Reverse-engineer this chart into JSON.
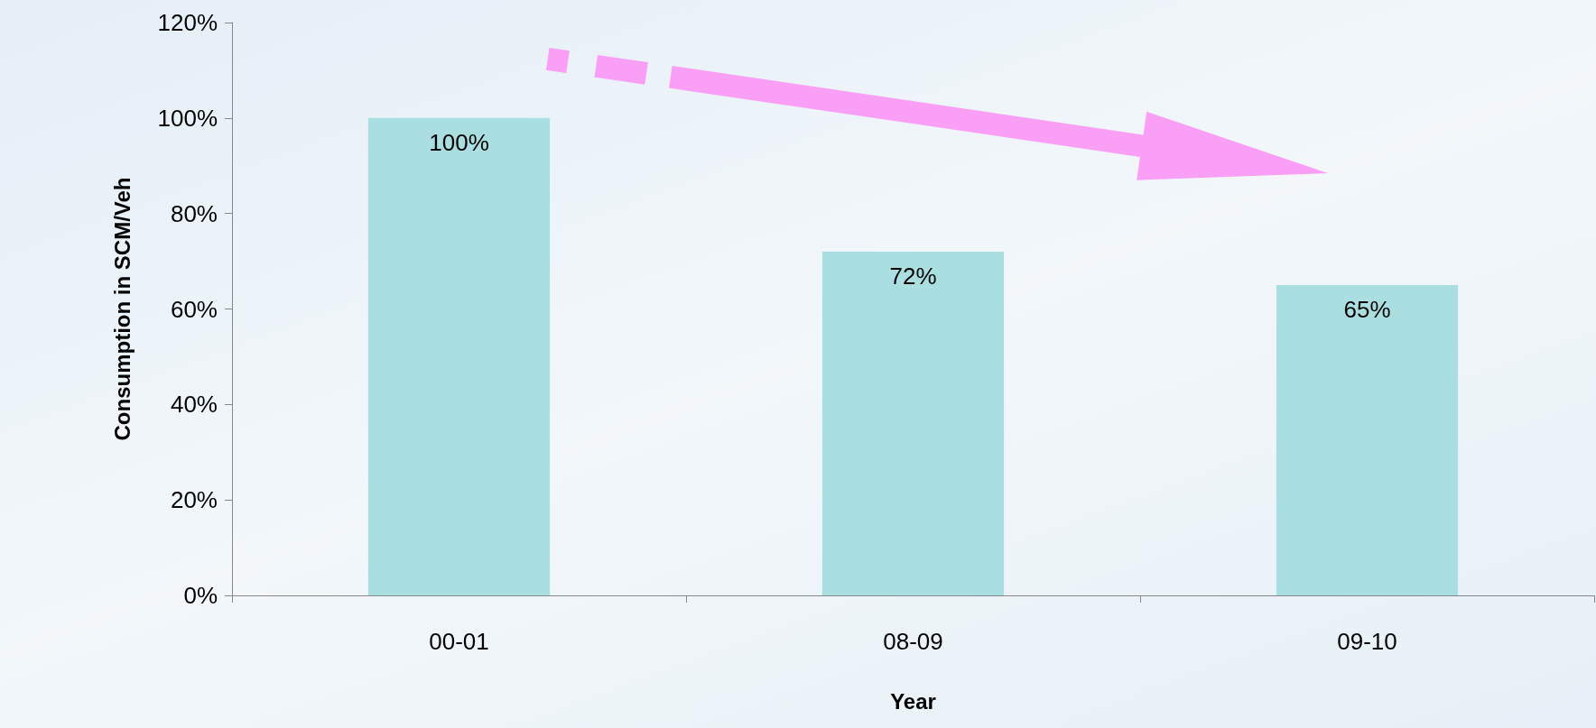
{
  "chart_data": {
    "type": "bar",
    "xlabel": "Year",
    "ylabel": "Consumption in SCM/Veh",
    "categories": [
      "00-01",
      "08-09",
      "09-10"
    ],
    "values": [
      100,
      72,
      65
    ],
    "value_labels": [
      "100%",
      "72%",
      "65%"
    ],
    "color": "#a9dfe0",
    "ylim": [
      0,
      120
    ],
    "yticks": [
      {
        "value": 0,
        "label": "0%"
      },
      {
        "value": 20,
        "label": "20%"
      },
      {
        "value": 40,
        "label": "40%"
      },
      {
        "value": 60,
        "label": "60%"
      },
      {
        "value": 80,
        "label": "80%"
      },
      {
        "value": 100,
        "label": "100%"
      },
      {
        "value": 120,
        "label": "120%"
      }
    ]
  }
}
